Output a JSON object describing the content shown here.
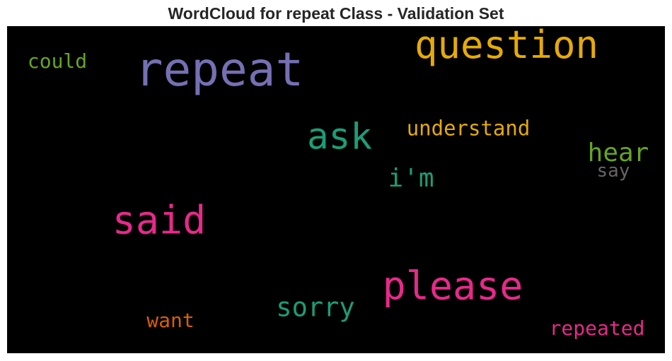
{
  "title": "WordCloud for repeat Class - Validation Set",
  "chart_data": {
    "type": "wordcloud",
    "words": [
      {
        "text": "repeat",
        "weight": 1.0,
        "color": "#7570b3"
      },
      {
        "text": "question",
        "weight": 0.82,
        "color": "#e6ab02"
      },
      {
        "text": "said",
        "weight": 0.83,
        "color": "#e7298a"
      },
      {
        "text": "please",
        "weight": 0.83,
        "color": "#e7298a"
      },
      {
        "text": "ask",
        "weight": 0.78,
        "color": "#1b9e77"
      },
      {
        "text": "sorry",
        "weight": 0.56,
        "color": "#1b9e77"
      },
      {
        "text": "hear",
        "weight": 0.55,
        "color": "#66a61e"
      },
      {
        "text": "i'm",
        "weight": 0.55,
        "color": "#1b9e77"
      },
      {
        "text": "understand",
        "weight": 0.44,
        "color": "#e6ab02"
      },
      {
        "text": "could",
        "weight": 0.43,
        "color": "#66a61e"
      },
      {
        "text": "want",
        "weight": 0.43,
        "color": "#d95f02"
      },
      {
        "text": "repeated",
        "weight": 0.43,
        "color": "#e7298a"
      },
      {
        "text": "say",
        "weight": 0.4,
        "color": "#666666"
      }
    ]
  }
}
